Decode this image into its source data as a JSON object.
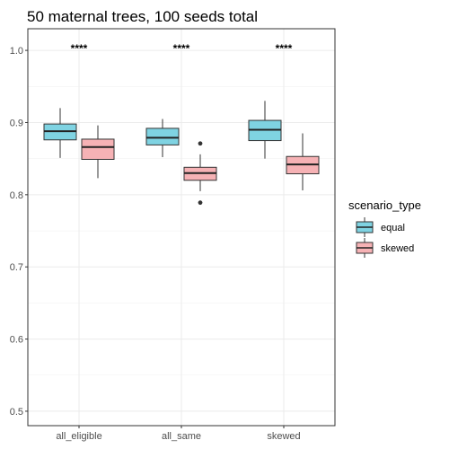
{
  "chart_data": {
    "type": "boxplot",
    "title": "50 maternal trees, 100 seeds total",
    "xlabel": "",
    "ylabel": "",
    "ylim": [
      0.48,
      1.03
    ],
    "yticks": [
      0.5,
      0.6,
      0.7,
      0.8,
      0.9,
      1.0
    ],
    "ytick_labels": [
      "0.5",
      "0.6",
      "0.7",
      "0.8",
      "0.9",
      "1.0"
    ],
    "categories": [
      "all_eligible",
      "all_same",
      "skewed"
    ],
    "legend_title": "scenario_type",
    "legend_position": "right",
    "grid": true,
    "series": [
      {
        "name": "equal",
        "color": "#7fd3e2",
        "boxes": [
          {
            "whisker_low": 0.851,
            "q1": 0.876,
            "median": 0.888,
            "q3": 0.898,
            "whisker_high": 0.92,
            "outliers": []
          },
          {
            "whisker_low": 0.852,
            "q1": 0.869,
            "median": 0.879,
            "q3": 0.892,
            "whisker_high": 0.905,
            "outliers": []
          },
          {
            "whisker_low": 0.85,
            "q1": 0.875,
            "median": 0.89,
            "q3": 0.903,
            "whisker_high": 0.93,
            "outliers": []
          }
        ]
      },
      {
        "name": "skewed",
        "color": "#f6b2b5",
        "boxes": [
          {
            "whisker_low": 0.823,
            "q1": 0.849,
            "median": 0.866,
            "q3": 0.877,
            "whisker_high": 0.896,
            "outliers": []
          },
          {
            "whisker_low": 0.805,
            "q1": 0.82,
            "median": 0.83,
            "q3": 0.838,
            "whisker_high": 0.856,
            "outliers": [
              0.871,
              0.789
            ]
          },
          {
            "whisker_low": 0.806,
            "q1": 0.829,
            "median": 0.842,
            "q3": 0.853,
            "whisker_high": 0.885,
            "outliers": []
          }
        ]
      }
    ],
    "annotations": [
      {
        "category": "all_eligible",
        "label": "****",
        "y": 1.0
      },
      {
        "category": "all_same",
        "label": "****",
        "y": 1.0
      },
      {
        "category": "skewed",
        "label": "****",
        "y": 1.0
      }
    ]
  }
}
